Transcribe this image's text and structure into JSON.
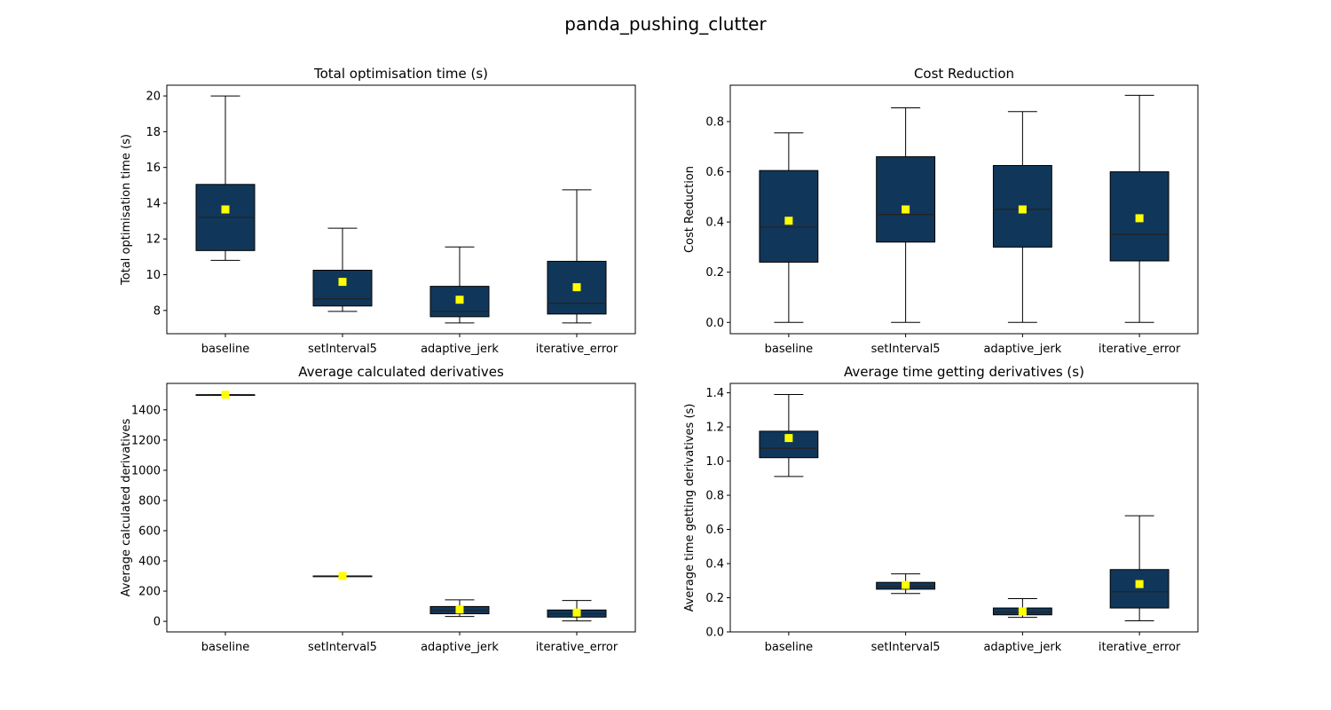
{
  "figure": {
    "title": "panda_pushing_clutter"
  },
  "colors": {
    "box_fill": "#10375a",
    "mean_marker": "#ffff00",
    "line": "#000000"
  },
  "chart_data": [
    {
      "type": "box",
      "title": "Total optimisation time (s)",
      "ylabel": "Total optimisation time (s)",
      "categories": [
        "baseline",
        "setInterval5",
        "adaptive_jerk",
        "iterative_error"
      ],
      "ylim": [
        6.7,
        20.6
      ],
      "yticks": [
        8,
        10,
        12,
        14,
        16,
        18,
        20
      ],
      "boxes": [
        {
          "whislo": 10.8,
          "q1": 11.35,
          "med": 13.2,
          "q3": 15.05,
          "whishi": 20.0,
          "mean": 13.65
        },
        {
          "whislo": 7.95,
          "q1": 8.25,
          "med": 8.65,
          "q3": 10.25,
          "whishi": 12.6,
          "mean": 9.6
        },
        {
          "whislo": 7.3,
          "q1": 7.65,
          "med": 7.95,
          "q3": 9.35,
          "whishi": 11.55,
          "mean": 8.6
        },
        {
          "whislo": 7.3,
          "q1": 7.8,
          "med": 8.4,
          "q3": 10.75,
          "whishi": 14.75,
          "mean": 9.3
        }
      ]
    },
    {
      "type": "box",
      "title": "Cost Reduction",
      "ylabel": "Cost Reduction",
      "categories": [
        "baseline",
        "setInterval5",
        "adaptive_jerk",
        "iterative_error"
      ],
      "ylim": [
        -0.045,
        0.945
      ],
      "yticks": [
        "0.0",
        "0.2",
        "0.4",
        "0.6",
        "0.8"
      ],
      "boxes": [
        {
          "whislo": 0.0,
          "q1": 0.24,
          "med": 0.38,
          "q3": 0.605,
          "whishi": 0.755,
          "mean": 0.405
        },
        {
          "whislo": 0.0,
          "q1": 0.32,
          "med": 0.43,
          "q3": 0.66,
          "whishi": 0.855,
          "mean": 0.45
        },
        {
          "whislo": 0.0,
          "q1": 0.3,
          "med": 0.45,
          "q3": 0.625,
          "whishi": 0.84,
          "mean": 0.45
        },
        {
          "whislo": 0.0,
          "q1": 0.245,
          "med": 0.35,
          "q3": 0.6,
          "whishi": 0.905,
          "mean": 0.415
        }
      ]
    },
    {
      "type": "box",
      "title": "Average calculated derivatives",
      "ylabel": "Average calculated derivatives",
      "categories": [
        "baseline",
        "setInterval5",
        "adaptive_jerk",
        "iterative_error"
      ],
      "ylim": [
        -70,
        1575
      ],
      "yticks": [
        0,
        200,
        400,
        600,
        800,
        1000,
        1200,
        1400
      ],
      "boxes": [
        {
          "whislo": 1500,
          "q1": 1500,
          "med": 1500,
          "q3": 1500,
          "whishi": 1500,
          "mean": 1500
        },
        {
          "whislo": 300,
          "q1": 300,
          "med": 300,
          "q3": 300,
          "whishi": 300,
          "mean": 300
        },
        {
          "whislo": 32,
          "q1": 50,
          "med": 72,
          "q3": 98,
          "whishi": 142,
          "mean": 78
        },
        {
          "whislo": 3,
          "q1": 28,
          "med": 50,
          "q3": 75,
          "whishi": 138,
          "mean": 58
        }
      ]
    },
    {
      "type": "box",
      "title": "Average time getting derivatives (s)",
      "ylabel": "Average time getting derivatives (s)",
      "categories": [
        "baseline",
        "setInterval5",
        "adaptive_jerk",
        "iterative_error"
      ],
      "ylim": [
        0.0,
        1.455
      ],
      "yticks": [
        "0.0",
        "0.2",
        "0.4",
        "0.6",
        "0.8",
        "1.0",
        "1.2",
        "1.4"
      ],
      "boxes": [
        {
          "whislo": 0.91,
          "q1": 1.02,
          "med": 1.075,
          "q3": 1.175,
          "whishi": 1.39,
          "mean": 1.135
        },
        {
          "whislo": 0.225,
          "q1": 0.25,
          "med": 0.265,
          "q3": 0.29,
          "whishi": 0.34,
          "mean": 0.275
        },
        {
          "whislo": 0.085,
          "q1": 0.1,
          "med": 0.115,
          "q3": 0.14,
          "whishi": 0.195,
          "mean": 0.12
        },
        {
          "whislo": 0.065,
          "q1": 0.14,
          "med": 0.235,
          "q3": 0.365,
          "whishi": 0.68,
          "mean": 0.28
        }
      ]
    }
  ]
}
